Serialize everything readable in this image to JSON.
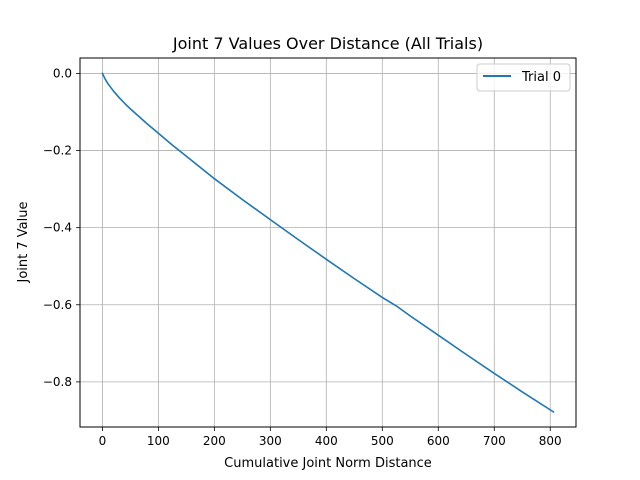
{
  "chart_data": {
    "type": "line",
    "title": "Joint 7 Values Over Distance (All Trials)",
    "xlabel": "Cumulative Joint Norm Distance",
    "ylabel": "Joint 7 Value",
    "xlim": [
      -40,
      846
    ],
    "ylim": [
      -0.917,
      0.04
    ],
    "xticks": [
      0,
      100,
      200,
      300,
      400,
      500,
      600,
      700,
      800
    ],
    "xtick_labels": [
      "0",
      "100",
      "200",
      "300",
      "400",
      "500",
      "600",
      "700",
      "800"
    ],
    "yticks": [
      0.0,
      -0.2,
      -0.4,
      -0.6,
      -0.8
    ],
    "ytick_labels": [
      "0.0",
      "−0.2",
      "−0.4",
      "−0.6",
      "−0.8"
    ],
    "grid": true,
    "legend_position": "top-right",
    "series": [
      {
        "name": "Trial 0",
        "color": "#1f77b4",
        "x": [
          0,
          5,
          10,
          20,
          30,
          40,
          50,
          60,
          80,
          100,
          125,
          150,
          200,
          250,
          300,
          350,
          400,
          450,
          500,
          525,
          550,
          600,
          650,
          700,
          750,
          806
        ],
        "y": [
          0.0,
          -0.015,
          -0.027,
          -0.046,
          -0.063,
          -0.078,
          -0.092,
          -0.105,
          -0.131,
          -0.155,
          -0.186,
          -0.215,
          -0.273,
          -0.327,
          -0.379,
          -0.431,
          -0.482,
          -0.532,
          -0.581,
          -0.603,
          -0.629,
          -0.679,
          -0.729,
          -0.778,
          -0.826,
          -0.878
        ]
      }
    ]
  }
}
